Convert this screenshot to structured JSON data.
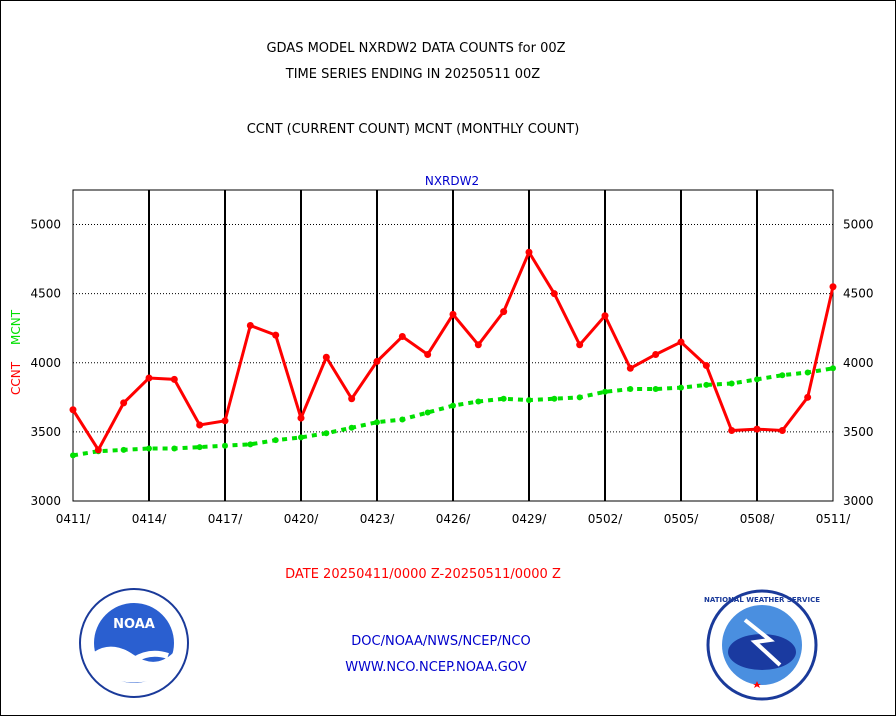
{
  "header": {
    "line1": "GDAS MODEL NXRDW2 DATA COUNTS for 00Z",
    "line2": "TIME SERIES ENDING IN 20250511 00Z",
    "line3": "CCNT (CURRENT COUNT) MCNT (MONTHLY COUNT)"
  },
  "footer": {
    "date_range": "DATE 20250411/0000 Z-20250511/0000 Z",
    "org": "DOC/NOAA/NWS/NCEP/NCO",
    "url": "WWW.NCO.NCEP.NOAA.GOV"
  },
  "logos": {
    "left": "NOAA",
    "right": "NATIONAL WEATHER SERVICE"
  },
  "chart_data": {
    "type": "line",
    "title": "NXRDW2",
    "ylabel_ccnt": "CCNT",
    "ylabel_mcnt": "MCNT",
    "ylim": [
      3000,
      5250
    ],
    "yticks": [
      3000,
      3500,
      4000,
      4500,
      5000
    ],
    "xtick_labels": [
      "0411/",
      "0414/",
      "0417/",
      "0420/",
      "0423/",
      "0426/",
      "0429/",
      "0502/",
      "0505/",
      "0508/",
      "0511/"
    ],
    "grid": true,
    "colors": {
      "ccnt": "#ff0000",
      "mcnt": "#00e000",
      "title": "#0000cc",
      "footer_date": "#ff0000",
      "footer_links": "#0000cc"
    },
    "series": [
      {
        "name": "CCNT",
        "values": [
          3660,
          3370,
          3710,
          3890,
          3880,
          3550,
          3580,
          4270,
          4200,
          3600,
          4040,
          3740,
          4010,
          4190,
          4060,
          4350,
          4130,
          4370,
          4800,
          4500,
          4130,
          4340,
          3960,
          4060,
          4150,
          3980,
          3510,
          3520,
          3510,
          3750,
          4550
        ]
      },
      {
        "name": "MCNT",
        "values": [
          3330,
          3360,
          3370,
          3380,
          3380,
          3390,
          3400,
          3410,
          3440,
          3460,
          3490,
          3530,
          3570,
          3590,
          3640,
          3690,
          3720,
          3740,
          3730,
          3740,
          3750,
          3790,
          3810,
          3810,
          3820,
          3840,
          3850,
          3880,
          3910,
          3930,
          3960
        ]
      }
    ]
  }
}
